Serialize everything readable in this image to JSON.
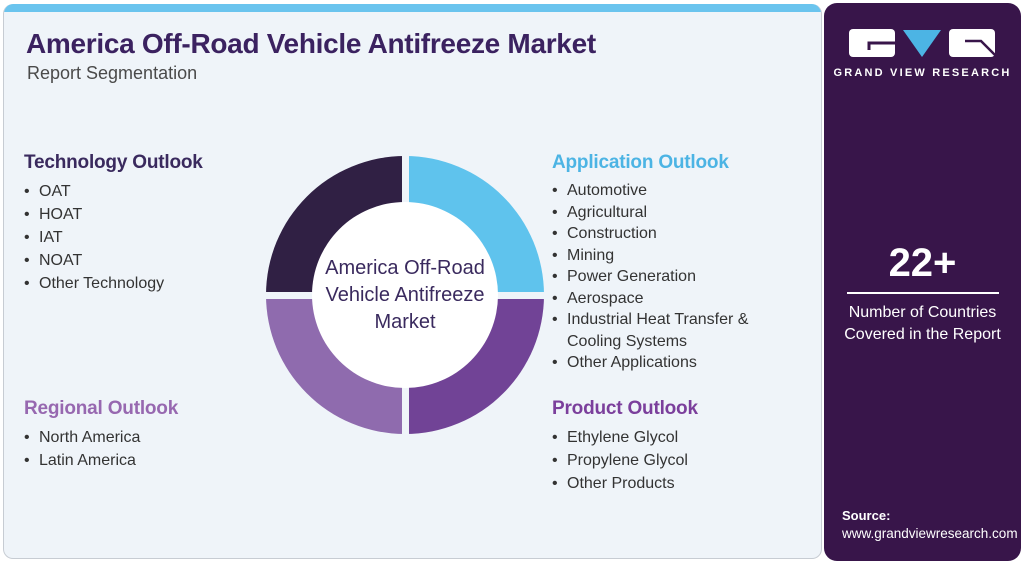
{
  "header": {
    "title": "America Off-Road Vehicle Antifreeze Market",
    "subtitle": "Report Segmentation"
  },
  "sections": [
    {
      "id": "technology",
      "title": "Technology Outlook",
      "color": "#3a2a5e",
      "items": [
        "OAT",
        "HOAT",
        "IAT",
        "NOAT",
        "Other Technology"
      ]
    },
    {
      "id": "application",
      "title": "Application Outlook",
      "color": "#4cb4e4",
      "items": [
        "Automotive",
        "Agricultural",
        "Construction",
        "Mining",
        "Power Generation",
        "Aerospace",
        "Industrial Heat Transfer & Cooling Systems",
        "Other Applications"
      ]
    },
    {
      "id": "regional",
      "title": "Regional Outlook",
      "color": "#9768b0",
      "items": [
        "North America",
        "Latin America"
      ]
    },
    {
      "id": "product",
      "title": "Product Outlook",
      "color": "#7b3f9c",
      "items": [
        "Ethylene Glycol",
        "Propylene Glycol",
        "Other Products"
      ]
    }
  ],
  "donut": {
    "center_label": "America Off-Road Vehicle Antifreeze Market",
    "segments": [
      {
        "position": "top-right",
        "color": "#5fc3ed"
      },
      {
        "position": "bottom-right",
        "color": "#714396"
      },
      {
        "position": "bottom-left",
        "color": "#8f6bae"
      },
      {
        "position": "top-left",
        "color": "#302044"
      }
    ]
  },
  "chart_data": {
    "type": "pie",
    "categories": [
      "Application Outlook",
      "Product Outlook",
      "Regional Outlook",
      "Technology Outlook"
    ],
    "values": [
      25,
      25,
      25,
      25
    ],
    "colors": [
      "#5fc3ed",
      "#714396",
      "#8f6bae",
      "#302044"
    ],
    "title": "America Off-Road Vehicle Antifreeze Market",
    "legend_position": "none",
    "note": "decorative equal-quadrant donut, center label only"
  },
  "sidebar": {
    "logo_text": "GRAND VIEW RESEARCH",
    "stat_value": "22+",
    "stat_label": "Number of Countries Covered in the Report",
    "source_label": "Source:",
    "source_url": "www.grandviewresearch.com"
  },
  "colors": {
    "card_background": "#eff4f9",
    "top_strip": "#6ac4ee",
    "sidebar_background": "#38154a",
    "title_text": "#3b2260",
    "logo_triangle": "#4cb4e4"
  }
}
